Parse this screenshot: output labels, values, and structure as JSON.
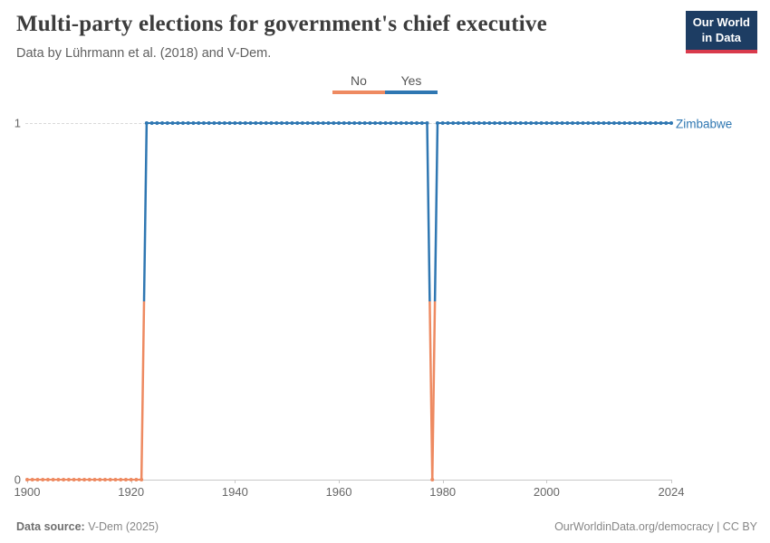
{
  "header": {
    "title": "Multi-party elections for government's chief executive",
    "subtitle": "Data by Lührmann et al. (2018) and V-Dem.",
    "logo": {
      "line1": "Our World",
      "line2": "in Data",
      "bg_color": "#1D3D63",
      "accent_color": "#D93A4C"
    }
  },
  "legend": {
    "items": [
      {
        "label": "No",
        "color": "#EE8A61"
      },
      {
        "label": "Yes",
        "color": "#2F77B2"
      }
    ]
  },
  "chart_data": {
    "type": "line",
    "entity_label": "Zimbabwe",
    "x_range": [
      1900,
      2024
    ],
    "y_range": [
      0,
      1
    ],
    "x_ticks": [
      1900,
      1920,
      1940,
      1960,
      1980,
      2000,
      2024
    ],
    "y_ticks": [
      1,
      0
    ],
    "value_labels": {
      "0": "No",
      "1": "Yes"
    },
    "colors": {
      "no": "#EE8A61",
      "yes": "#2F77B2"
    },
    "grid": "dashed horizontal gridline at y=1, solid axis at y=0",
    "legend_position": "top-center",
    "series": [
      {
        "name": "Zimbabwe",
        "segments": [
          {
            "from": 1900,
            "to": 1922,
            "value": 0
          },
          {
            "from": 1923,
            "to": 1977,
            "value": 1
          },
          {
            "from": 1978,
            "to": 1978,
            "value": 0
          },
          {
            "from": 1979,
            "to": 2024,
            "value": 1
          }
        ]
      }
    ]
  },
  "footer": {
    "source_label": "Data source:",
    "source_value": "V-Dem (2025)",
    "credit": "OurWorldinData.org/democracy | CC BY"
  }
}
